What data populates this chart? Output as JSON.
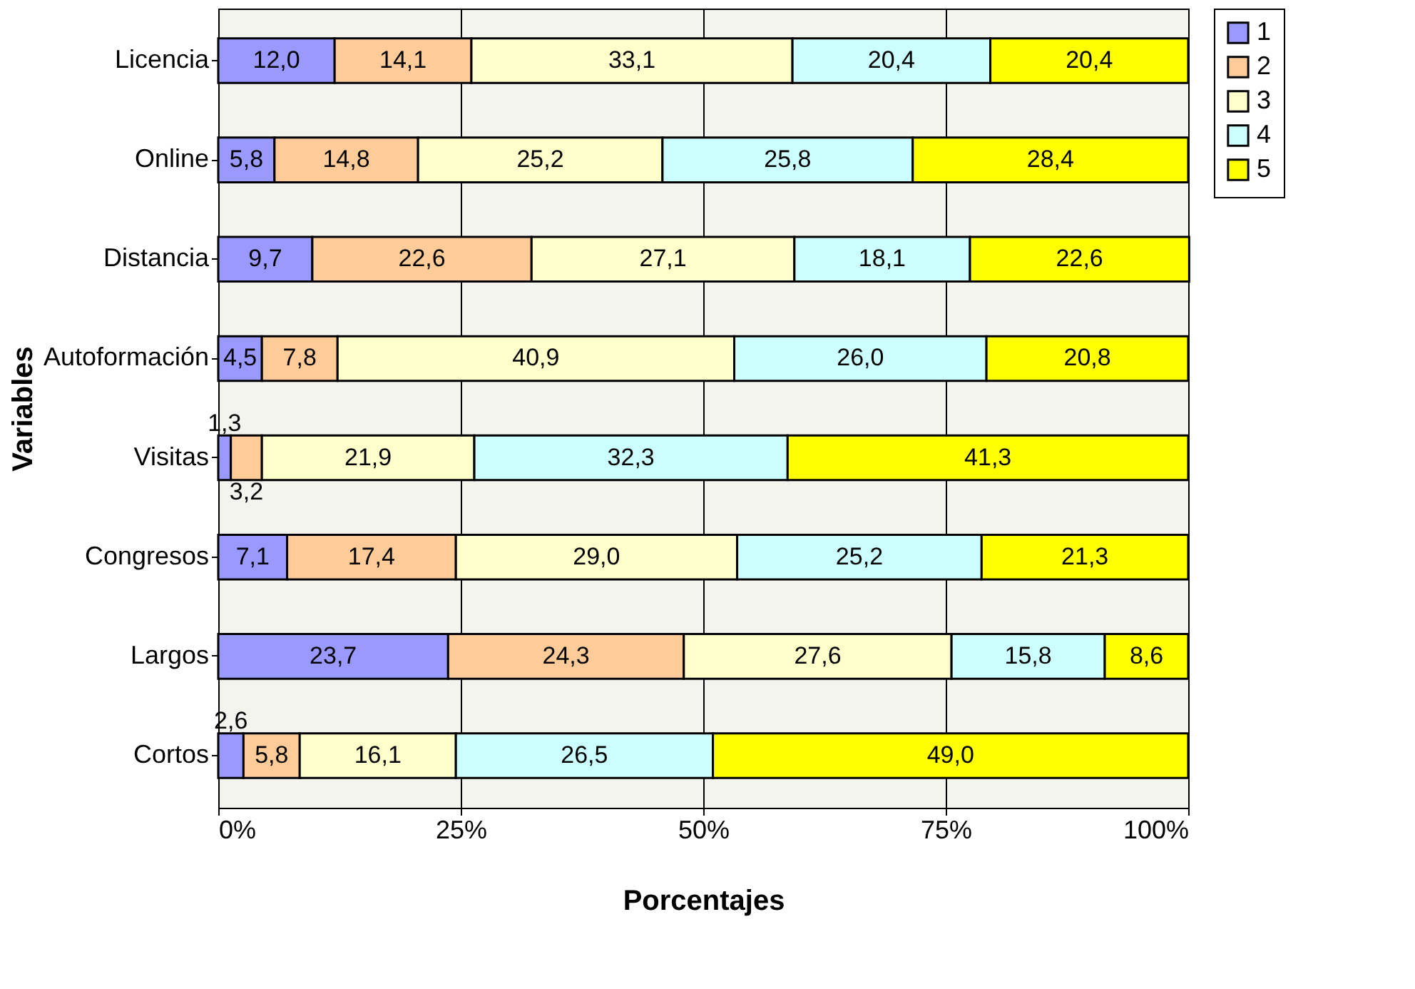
{
  "chart_data": {
    "type": "bar",
    "orientation": "horizontal",
    "stacked": true,
    "xlabel": "Porcentajes",
    "ylabel": "Variables",
    "categories": [
      "Licencia",
      "Online",
      "Distancia",
      "Autoformación",
      "Visitas",
      "Congresos",
      "Largos",
      "Cortos"
    ],
    "series": [
      {
        "name": "1",
        "color": "#9999ff",
        "values": [
          12.0,
          5.8,
          9.7,
          4.5,
          1.3,
          7.1,
          23.7,
          2.6
        ],
        "value_labels": [
          "12,0",
          "5,8",
          "9,7",
          "4,5",
          "1,3",
          "7,1",
          "23,7",
          "2,6"
        ]
      },
      {
        "name": "2",
        "color": "#ffcc99",
        "values": [
          14.1,
          14.8,
          22.6,
          7.8,
          3.2,
          17.4,
          24.3,
          5.8
        ],
        "value_labels": [
          "14,1",
          "14,8",
          "22,6",
          "7,8",
          "3,2",
          "17,4",
          "24,3",
          "5,8"
        ]
      },
      {
        "name": "3",
        "color": "#ffffcc",
        "values": [
          33.1,
          25.2,
          27.1,
          40.9,
          21.9,
          29.0,
          27.6,
          16.1
        ],
        "value_labels": [
          "33,1",
          "25,2",
          "27,1",
          "40,9",
          "21,9",
          "29,0",
          "27,6",
          "16,1"
        ]
      },
      {
        "name": "4",
        "color": "#ccffff",
        "values": [
          20.4,
          25.8,
          18.1,
          26.0,
          32.3,
          25.2,
          15.8,
          26.5
        ],
        "value_labels": [
          "20,4",
          "25,8",
          "18,1",
          "26,0",
          "32,3",
          "25,2",
          "15,8",
          "26,5"
        ]
      },
      {
        "name": "5",
        "color": "#ffff00",
        "values": [
          20.4,
          28.4,
          22.6,
          20.8,
          41.3,
          21.3,
          8.6,
          49.0
        ],
        "value_labels": [
          "20,4",
          "28,4",
          "22,6",
          "20,8",
          "41,3",
          "21,3",
          "8,6",
          "49,0"
        ]
      }
    ],
    "xlim": [
      0,
      100
    ],
    "xticks": [
      {
        "value": 0,
        "label": "0%"
      },
      {
        "value": 25,
        "label": "25%"
      },
      {
        "value": 50,
        "label": "50%"
      },
      {
        "value": 75,
        "label": "75%"
      },
      {
        "value": 100,
        "label": "100%"
      }
    ],
    "grid": "x",
    "legend": "right"
  }
}
